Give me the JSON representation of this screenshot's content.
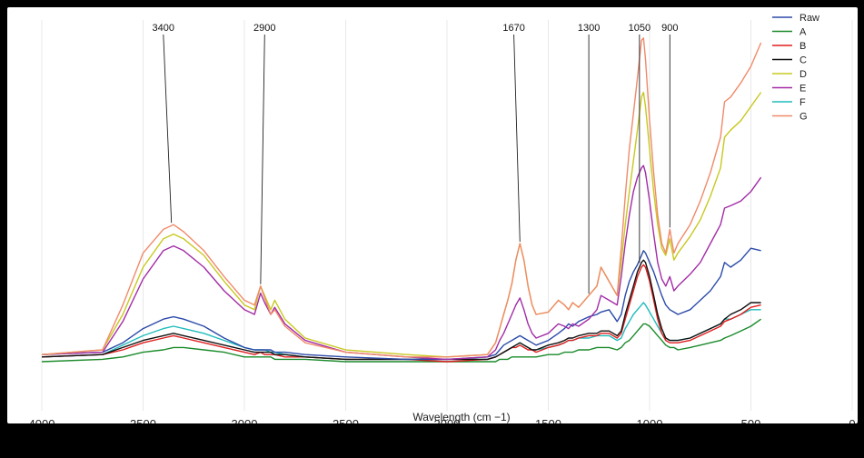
{
  "chart_data": {
    "type": "line",
    "title": "",
    "xlabel": "Wavelength (cm −1)",
    "ylabel": "",
    "xlim": [
      4000,
      0
    ],
    "x_ticks": [
      "4000",
      "3500",
      "3000",
      "2500",
      "2000",
      "1500",
      "1000",
      "500",
      "0"
    ],
    "grid": true,
    "legend_position": "top-right",
    "annotations": [
      {
        "label": "3400",
        "x": 3360,
        "series": "G"
      },
      {
        "label": "2900",
        "x": 2920,
        "series": "D"
      },
      {
        "label": "1670",
        "x": 1640,
        "series": "G"
      },
      {
        "label": "1300",
        "x": 1300,
        "series": "D"
      },
      {
        "label": "1050",
        "x": 1050,
        "series": "Raw"
      },
      {
        "label": "900",
        "x": 900,
        "series": "G"
      }
    ],
    "x": [
      4000,
      3700,
      3600,
      3500,
      3400,
      3350,
      3300,
      3200,
      3100,
      3000,
      2950,
      2920,
      2900,
      2870,
      2850,
      2800,
      2700,
      2500,
      2200,
      2000,
      1800,
      1760,
      1740,
      1720,
      1700,
      1680,
      1660,
      1640,
      1620,
      1600,
      1580,
      1560,
      1500,
      1450,
      1420,
      1400,
      1380,
      1350,
      1300,
      1260,
      1240,
      1200,
      1160,
      1140,
      1120,
      1100,
      1080,
      1060,
      1040,
      1030,
      1020,
      1000,
      980,
      960,
      940,
      920,
      900,
      880,
      860,
      800,
      750,
      700,
      650,
      630,
      600,
      550,
      500,
      450
    ],
    "series": [
      {
        "name": "Raw",
        "color": "#2b4aa8",
        "values": [
          0.03,
          0.04,
          0.08,
          0.14,
          0.18,
          0.19,
          0.18,
          0.15,
          0.1,
          0.06,
          0.05,
          0.05,
          0.05,
          0.05,
          0.04,
          0.04,
          0.03,
          0.02,
          0.01,
          0.01,
          0.02,
          0.03,
          0.05,
          0.07,
          0.08,
          0.09,
          0.1,
          0.11,
          0.1,
          0.09,
          0.08,
          0.07,
          0.09,
          0.12,
          0.14,
          0.16,
          0.15,
          0.17,
          0.19,
          0.2,
          0.21,
          0.22,
          0.17,
          0.2,
          0.28,
          0.34,
          0.38,
          0.41,
          0.45,
          0.47,
          0.46,
          0.42,
          0.38,
          0.33,
          0.28,
          0.24,
          0.22,
          0.21,
          0.2,
          0.22,
          0.26,
          0.3,
          0.36,
          0.42,
          0.4,
          0.43,
          0.48,
          0.47
        ]
      },
      {
        "name": "A",
        "color": "#1a8a2a",
        "values": [
          0.0,
          0.01,
          0.02,
          0.04,
          0.05,
          0.06,
          0.06,
          0.05,
          0.04,
          0.02,
          0.02,
          0.02,
          0.02,
          0.02,
          0.01,
          0.01,
          0.01,
          0.0,
          0.0,
          0.0,
          0.0,
          0.0,
          0.01,
          0.01,
          0.01,
          0.02,
          0.02,
          0.02,
          0.02,
          0.02,
          0.02,
          0.02,
          0.03,
          0.03,
          0.04,
          0.04,
          0.04,
          0.05,
          0.05,
          0.06,
          0.06,
          0.06,
          0.05,
          0.06,
          0.08,
          0.09,
          0.11,
          0.13,
          0.15,
          0.16,
          0.16,
          0.15,
          0.13,
          0.11,
          0.09,
          0.07,
          0.06,
          0.06,
          0.05,
          0.06,
          0.07,
          0.08,
          0.09,
          0.1,
          0.11,
          0.13,
          0.15,
          0.18
        ]
      },
      {
        "name": "B",
        "color": "#e01f1f",
        "values": [
          0.02,
          0.03,
          0.05,
          0.08,
          0.1,
          0.11,
          0.1,
          0.08,
          0.06,
          0.04,
          0.03,
          0.04,
          0.03,
          0.03,
          0.03,
          0.02,
          0.02,
          0.01,
          0.01,
          0.0,
          0.01,
          0.02,
          0.03,
          0.04,
          0.05,
          0.06,
          0.06,
          0.07,
          0.06,
          0.05,
          0.05,
          0.04,
          0.06,
          0.07,
          0.08,
          0.09,
          0.09,
          0.1,
          0.11,
          0.11,
          0.12,
          0.12,
          0.1,
          0.12,
          0.18,
          0.24,
          0.3,
          0.36,
          0.4,
          0.41,
          0.4,
          0.34,
          0.26,
          0.18,
          0.12,
          0.09,
          0.08,
          0.08,
          0.08,
          0.09,
          0.11,
          0.13,
          0.15,
          0.17,
          0.18,
          0.2,
          0.23,
          0.24
        ]
      },
      {
        "name": "C",
        "color": "#111111",
        "values": [
          0.02,
          0.03,
          0.06,
          0.09,
          0.11,
          0.12,
          0.11,
          0.09,
          0.07,
          0.05,
          0.04,
          0.04,
          0.04,
          0.04,
          0.03,
          0.03,
          0.02,
          0.01,
          0.01,
          0.01,
          0.01,
          0.02,
          0.03,
          0.04,
          0.05,
          0.06,
          0.07,
          0.08,
          0.07,
          0.06,
          0.05,
          0.05,
          0.07,
          0.08,
          0.09,
          0.1,
          0.1,
          0.11,
          0.12,
          0.12,
          0.13,
          0.13,
          0.11,
          0.13,
          0.2,
          0.26,
          0.32,
          0.38,
          0.42,
          0.43,
          0.42,
          0.36,
          0.28,
          0.2,
          0.14,
          0.1,
          0.09,
          0.09,
          0.09,
          0.1,
          0.12,
          0.14,
          0.16,
          0.18,
          0.2,
          0.22,
          0.25,
          0.25
        ]
      },
      {
        "name": "D",
        "color": "#c8c820",
        "values": [
          0.03,
          0.05,
          0.2,
          0.4,
          0.52,
          0.54,
          0.52,
          0.45,
          0.34,
          0.24,
          0.22,
          0.32,
          0.28,
          0.22,
          0.26,
          0.18,
          0.1,
          0.05,
          0.03,
          0.02,
          0.03,
          0.08,
          0.14,
          0.2,
          0.26,
          0.33,
          0.43,
          0.5,
          0.43,
          0.32,
          0.24,
          0.2,
          0.21,
          0.26,
          0.24,
          0.22,
          0.25,
          0.23,
          0.28,
          0.32,
          0.4,
          0.34,
          0.28,
          0.42,
          0.58,
          0.72,
          0.85,
          0.98,
          1.12,
          1.14,
          1.08,
          0.9,
          0.72,
          0.58,
          0.48,
          0.45,
          0.52,
          0.43,
          0.46,
          0.53,
          0.6,
          0.7,
          0.82,
          0.95,
          0.98,
          1.02,
          1.08,
          1.14
        ]
      },
      {
        "name": "E",
        "color": "#a22ca6",
        "values": [
          0.03,
          0.04,
          0.17,
          0.35,
          0.47,
          0.49,
          0.47,
          0.4,
          0.3,
          0.22,
          0.2,
          0.29,
          0.25,
          0.2,
          0.23,
          0.16,
          0.09,
          0.04,
          0.02,
          0.01,
          0.02,
          0.05,
          0.09,
          0.12,
          0.16,
          0.2,
          0.24,
          0.27,
          0.22,
          0.16,
          0.12,
          0.1,
          0.12,
          0.16,
          0.15,
          0.14,
          0.16,
          0.15,
          0.18,
          0.22,
          0.28,
          0.26,
          0.24,
          0.36,
          0.5,
          0.62,
          0.72,
          0.78,
          0.82,
          0.83,
          0.8,
          0.68,
          0.54,
          0.42,
          0.35,
          0.32,
          0.36,
          0.3,
          0.32,
          0.37,
          0.42,
          0.5,
          0.58,
          0.65,
          0.66,
          0.68,
          0.72,
          0.78
        ]
      },
      {
        "name": "F",
        "color": "#20bcbc",
        "values": [
          0.02,
          0.03,
          0.07,
          0.11,
          0.14,
          0.15,
          0.14,
          0.12,
          0.09,
          0.06,
          0.05,
          0.05,
          0.05,
          0.04,
          0.04,
          0.03,
          0.02,
          0.01,
          0.01,
          0.01,
          0.01,
          0.02,
          0.03,
          0.04,
          0.05,
          0.06,
          0.07,
          0.08,
          0.07,
          0.06,
          0.05,
          0.05,
          0.06,
          0.07,
          0.08,
          0.09,
          0.09,
          0.1,
          0.1,
          0.11,
          0.11,
          0.11,
          0.09,
          0.1,
          0.14,
          0.17,
          0.2,
          0.22,
          0.24,
          0.25,
          0.24,
          0.21,
          0.18,
          0.15,
          0.12,
          0.1,
          0.09,
          0.09,
          0.09,
          0.1,
          0.12,
          0.14,
          0.16,
          0.18,
          0.18,
          0.2,
          0.22,
          0.22
        ]
      },
      {
        "name": "G",
        "color": "#f08a6a",
        "values": [
          0.03,
          0.05,
          0.24,
          0.46,
          0.56,
          0.58,
          0.55,
          0.47,
          0.36,
          0.26,
          0.24,
          0.32,
          0.27,
          0.2,
          0.22,
          0.15,
          0.08,
          0.04,
          0.02,
          0.02,
          0.03,
          0.08,
          0.14,
          0.2,
          0.26,
          0.33,
          0.43,
          0.5,
          0.43,
          0.32,
          0.24,
          0.2,
          0.21,
          0.26,
          0.24,
          0.22,
          0.25,
          0.23,
          0.28,
          0.32,
          0.4,
          0.34,
          0.28,
          0.48,
          0.7,
          0.9,
          1.05,
          1.2,
          1.36,
          1.37,
          1.28,
          1.02,
          0.8,
          0.62,
          0.5,
          0.46,
          0.56,
          0.46,
          0.5,
          0.58,
          0.68,
          0.8,
          0.95,
          1.1,
          1.12,
          1.18,
          1.25,
          1.35
        ]
      }
    ]
  }
}
